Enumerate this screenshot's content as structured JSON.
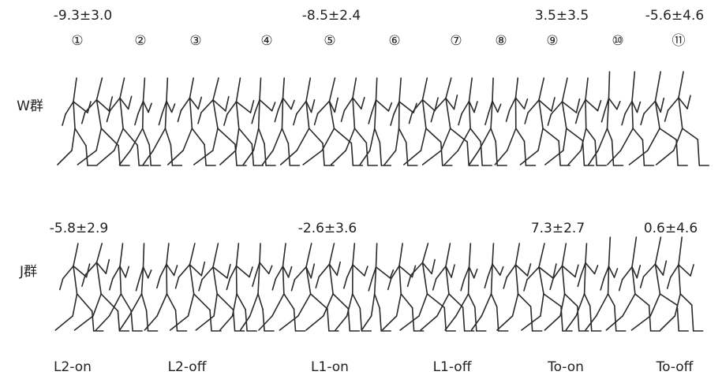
{
  "frame_numbers": [
    "①",
    "②",
    "③",
    "④",
    "⑤",
    "⑥",
    "⑦",
    "⑧",
    "⑨",
    "⑩",
    "⑪"
  ],
  "w_group": {
    "label": "W群",
    "stats": [
      "-9.3±3.0",
      "-8.5±2.4",
      "3.5±3.5",
      "-5.6±4.6"
    ]
  },
  "j_group": {
    "label": "J群",
    "stats": [
      "-5.8±2.9",
      "-2.6±3.6",
      "7.3±2.7",
      "0.6±4.6"
    ]
  },
  "phases": [
    "L2-on",
    "L2-off",
    "L1-on",
    "L1-off",
    "To-on",
    "To-off"
  ]
}
